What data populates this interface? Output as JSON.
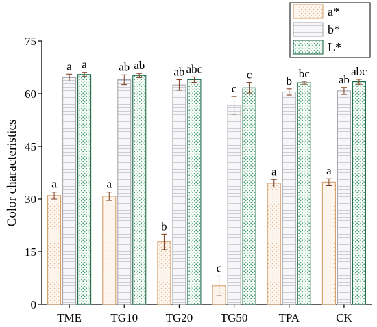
{
  "chart_data": {
    "type": "bar",
    "title": "",
    "xlabel": "",
    "ylabel": "Color characteristics",
    "ylim": [
      0,
      75
    ],
    "yticks": [
      0,
      15,
      30,
      45,
      60,
      75
    ],
    "categories": [
      "TME",
      "TG10",
      "TG20",
      "TG50",
      "TPA",
      "CK"
    ],
    "series": [
      {
        "name": "a*",
        "color": "#d9a06a",
        "fill": "#fdf6ef",
        "pattern": "dots",
        "values": [
          31.0,
          30.8,
          17.8,
          5.3,
          34.5,
          34.8
        ],
        "errors": [
          1.0,
          1.2,
          2.2,
          2.8,
          1.1,
          1.0
        ],
        "labels": [
          "a",
          "a",
          "b",
          "c",
          "a",
          "a"
        ]
      },
      {
        "name": "b*",
        "color": "#a8a8ae",
        "fill": "#f5f5f7",
        "pattern": "hlines",
        "values": [
          64.6,
          64.0,
          62.5,
          56.7,
          60.5,
          60.8
        ],
        "errors": [
          1.0,
          1.4,
          1.5,
          2.5,
          0.9,
          1.0
        ],
        "labels": [
          "a",
          "ab",
          "ab",
          "c",
          "b",
          "ab"
        ]
      },
      {
        "name": "L*",
        "color": "#1f6b4a",
        "fill": "#ffffff",
        "pattern": "greendots",
        "values": [
          65.5,
          65.2,
          64.0,
          61.7,
          63.1,
          63.4
        ],
        "errors": [
          0.6,
          0.6,
          0.8,
          1.5,
          0.4,
          0.7
        ],
        "labels": [
          "a",
          "ab",
          "abc",
          "c",
          "bc",
          "abc"
        ]
      }
    ],
    "legend": {
      "position": "top-right"
    },
    "grid": false
  }
}
